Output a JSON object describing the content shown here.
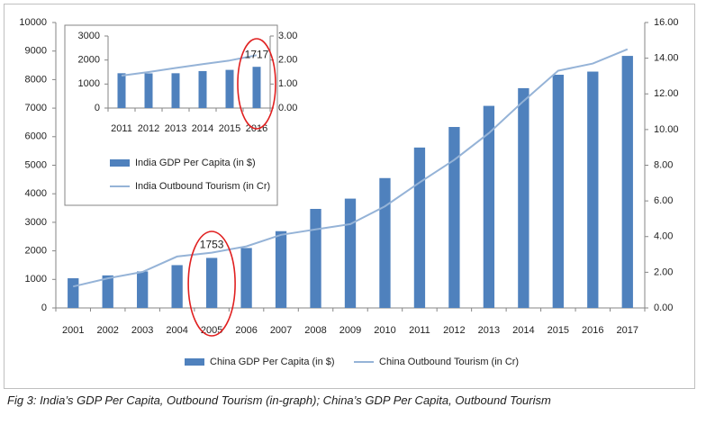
{
  "caption": "Fig 3: India’s GDP Per Capita, Outbound Tourism (in-graph); China’s GDP Per Capita, Outbound Tourism",
  "colors": {
    "bar": "#4f81bd",
    "line": "#95b3d7",
    "highlight": "#e02020",
    "axis": "#868686",
    "text": "#1f1f1f"
  },
  "chart_data": [
    {
      "type": "bar+line",
      "categories": [
        "2001",
        "2002",
        "2003",
        "2004",
        "2005",
        "2006",
        "2007",
        "2008",
        "2009",
        "2010",
        "2011",
        "2012",
        "2013",
        "2014",
        "2015",
        "2016",
        "2017"
      ],
      "series": [
        {
          "name": "China GDP Per Capita  (in $)",
          "type": "bar",
          "axis": "left",
          "values": [
            1040,
            1140,
            1280,
            1500,
            1753,
            2100,
            2690,
            3470,
            3830,
            4550,
            5620,
            6340,
            7080,
            7700,
            8170,
            8280,
            8830
          ]
        },
        {
          "name": "China Outbound Tourism  (in Cr)",
          "type": "line",
          "axis": "right",
          "values": [
            1.2,
            1.66,
            2.02,
            2.88,
            3.1,
            3.45,
            4.1,
            4.4,
            4.7,
            5.7,
            7.03,
            8.3,
            9.8,
            11.6,
            13.3,
            13.7,
            14.5
          ]
        }
      ],
      "ylim_left": [
        0,
        10000
      ],
      "yticks_left": [
        0,
        1000,
        2000,
        3000,
        4000,
        5000,
        6000,
        7000,
        8000,
        9000,
        10000
      ],
      "ylim_right": [
        0,
        16
      ],
      "yticks_right": [
        "0.00",
        "2.00",
        "4.00",
        "6.00",
        "8.00",
        "10.00",
        "12.00",
        "14.00",
        "16.00"
      ],
      "annotations": [
        {
          "category": "2005",
          "label": "1753"
        }
      ],
      "grid": false,
      "legend": "bottom"
    },
    {
      "type": "bar+line",
      "categories": [
        "2011",
        "2012",
        "2013",
        "2014",
        "2015",
        "2016"
      ],
      "series": [
        {
          "name": "India GDP Per Capita  (in $)",
          "type": "bar",
          "axis": "left",
          "values": [
            1450,
            1445,
            1450,
            1540,
            1590,
            1717
          ]
        },
        {
          "name": "India Outbound Tourism  (in Cr)",
          "type": "line",
          "axis": "right",
          "values": [
            1.35,
            1.5,
            1.67,
            1.83,
            1.98,
            2.2
          ]
        }
      ],
      "ylim_left": [
        0,
        3000
      ],
      "yticks_left": [
        0,
        1000,
        2000,
        3000
      ],
      "ylim_right": [
        0,
        3
      ],
      "yticks_right": [
        "0.00",
        "1.00",
        "2.00",
        "3.00"
      ],
      "annotations": [
        {
          "category": "2016",
          "label": "1717"
        }
      ],
      "grid": false,
      "legend": "bottom"
    }
  ]
}
